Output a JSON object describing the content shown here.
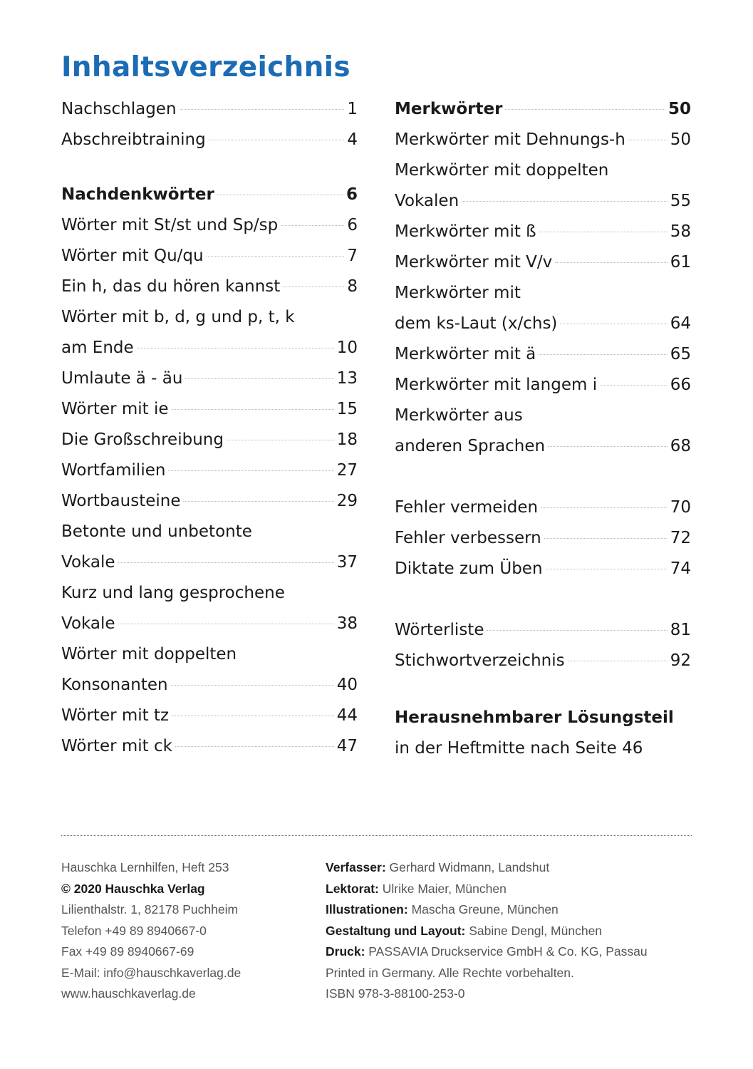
{
  "title": "Inhaltsverzeichnis",
  "toc": {
    "left": [
      {
        "gap_rows": 0,
        "rows": [
          {
            "label": "Nachschlagen",
            "page": "1"
          },
          {
            "label": "Abschreibtraining",
            "page": "4"
          }
        ]
      },
      {
        "gap_rows": 0.8,
        "rows": [
          {
            "label": "Nachdenkwörter",
            "page": "6",
            "bold": true
          },
          {
            "label": "Wörter mit St/st und Sp/sp",
            "page": "6"
          },
          {
            "label": "Wörter mit Qu/qu",
            "page": "7"
          },
          {
            "label": "Ein h, das du hören kannst",
            "page": "8"
          },
          {
            "label": "Wörter mit b, d, g und p, t, k",
            "page": null
          },
          {
            "label": "am Ende",
            "page": "10"
          },
          {
            "label": "Umlaute ä - äu",
            "page": "13"
          },
          {
            "label": "Wörter mit ie",
            "page": "15"
          },
          {
            "label": "Die Großschreibung",
            "page": "18"
          },
          {
            "label": "Wortfamilien",
            "page": "27"
          },
          {
            "label": "Wortbausteine",
            "page": "29"
          },
          {
            "label": "Betonte und unbetonte",
            "page": null
          },
          {
            "label": "Vokale",
            "page": "37"
          },
          {
            "label": "Kurz und lang gesprochene",
            "page": null
          },
          {
            "label": "Vokale",
            "page": "38"
          },
          {
            "label": "Wörter mit doppelten",
            "page": null
          },
          {
            "label": "Konsonanten",
            "page": "40"
          },
          {
            "label": "Wörter mit tz",
            "page": "44"
          },
          {
            "label": "Wörter mit ck",
            "page": "47"
          }
        ]
      }
    ],
    "right": [
      {
        "gap_rows": 0,
        "rows": [
          {
            "label": "Merkwörter",
            "page": "50",
            "bold": true
          },
          {
            "label": "Merkwörter mit Dehnungs-h",
            "page": "50"
          },
          {
            "label": "Merkwörter mit doppelten",
            "page": null
          },
          {
            "label": "Vokalen",
            "page": "55"
          },
          {
            "label": "Merkwörter mit ß",
            "page": "58"
          },
          {
            "label": "Merkwörter mit V/v",
            "page": "61"
          },
          {
            "label": "Merkwörter mit",
            "page": null
          },
          {
            "label": "dem ks-Laut (x/chs)",
            "page": "64"
          },
          {
            "label": "Merkwörter mit ä",
            "page": "65"
          },
          {
            "label": "Merkwörter mit langem i",
            "page": "66"
          },
          {
            "label": "Merkwörter aus",
            "page": null
          },
          {
            "label": "anderen Sprachen",
            "page": "68"
          }
        ]
      },
      {
        "gap_rows": 1,
        "rows": [
          {
            "label": "Fehler vermeiden",
            "page": "70"
          },
          {
            "label": "Fehler verbessern",
            "page": "72"
          },
          {
            "label": "Diktate zum Üben",
            "page": "74"
          }
        ]
      },
      {
        "gap_rows": 1,
        "rows": [
          {
            "label": "Wörterliste",
            "page": "81"
          },
          {
            "label": "Stichwortverzeichnis",
            "page": "92"
          }
        ]
      },
      {
        "gap_rows": 0.85,
        "rows": [
          {
            "label": "Herausnehmbarer Lösungsteil",
            "page": null,
            "bold": true,
            "nodots": true
          },
          {
            "label": "in der Heftmitte nach Seite 46",
            "page": null,
            "nodots": true
          }
        ]
      }
    ]
  },
  "imprint": {
    "left": [
      {
        "bold": "",
        "text": "Hauschka Lernhilfen, Heft 253"
      },
      {
        "bold": "© 2020 Hauschka Verlag",
        "text": ""
      },
      {
        "bold": "",
        "text": "Lilienthalstr. 1, 82178 Puchheim"
      },
      {
        "bold": "",
        "text": "Telefon +49 89 8940667-0"
      },
      {
        "bold": "",
        "text": "Fax +49 89 8940667-69"
      },
      {
        "bold": "",
        "text": "E-Mail: info@hauschkaverlag.de"
      },
      {
        "bold": "",
        "text": "www.hauschkaverlag.de"
      }
    ],
    "right": [
      {
        "bold": "Verfasser:",
        "text": " Gerhard Widmann, Landshut"
      },
      {
        "bold": "Lektorat:",
        "text": " Ulrike Maier, München"
      },
      {
        "bold": "Illustrationen:",
        "text": " Mascha Greune, München"
      },
      {
        "bold": "Gestaltung und Layout:",
        "text": " Sabine Dengl, München"
      },
      {
        "bold": "Druck:",
        "text": " PASSAVIA Druckservice GmbH & Co. KG, Passau"
      },
      {
        "bold": "",
        "text": "Printed in Germany. Alle Rechte vorbehalten."
      },
      {
        "bold": "",
        "text": "ISBN 978-3-88100-253-0"
      }
    ]
  },
  "colors": {
    "title": "#1b6cb5",
    "text": "#1a1a1a",
    "imprint": "#555555"
  }
}
